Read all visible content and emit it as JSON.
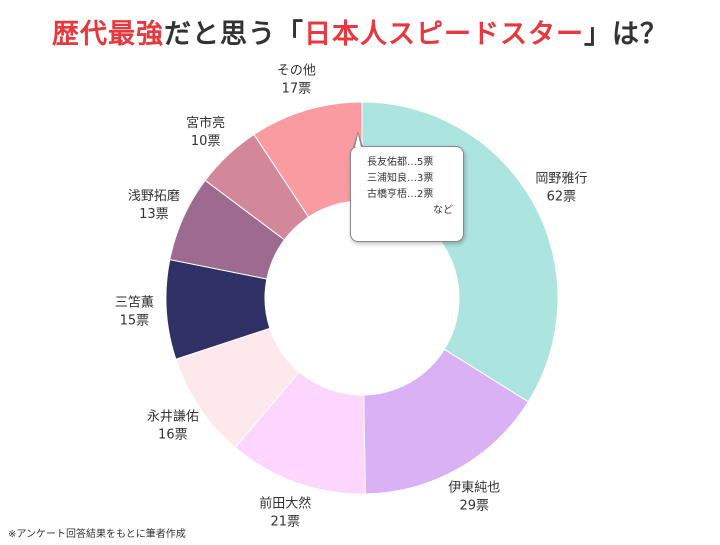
{
  "title": {
    "part1": "歴代最強",
    "part2": "だと思う「",
    "part3": "日本人スピードスター",
    "part4": "」は？"
  },
  "chart_data": {
    "type": "pie",
    "donut": true,
    "unit": "票",
    "slices": [
      {
        "label": "岡野雅行",
        "value": 62,
        "color": "#ace4e0"
      },
      {
        "label": "伊東純也",
        "value": 29,
        "color": "#d9b1f4"
      },
      {
        "label": "前田大然",
        "value": 21,
        "color": "#fcd6fc"
      },
      {
        "label": "永井謙佑",
        "value": 16,
        "color": "#fde9ec"
      },
      {
        "label": "三笘薫",
        "value": 15,
        "color": "#2e3066"
      },
      {
        "label": "浅野拓磨",
        "value": 13,
        "color": "#9d6a90"
      },
      {
        "label": "宮市亮",
        "value": 10,
        "color": "#d3879b"
      },
      {
        "label": "その他",
        "value": 17,
        "color": "#f99ba0"
      }
    ]
  },
  "callout": {
    "lines": [
      "長友佑都…5票",
      "三浦知良…3票",
      "古橋亨梧…2票"
    ],
    "etc": "など"
  },
  "footnote": "※アンケート回答結果をもとに筆者作成"
}
